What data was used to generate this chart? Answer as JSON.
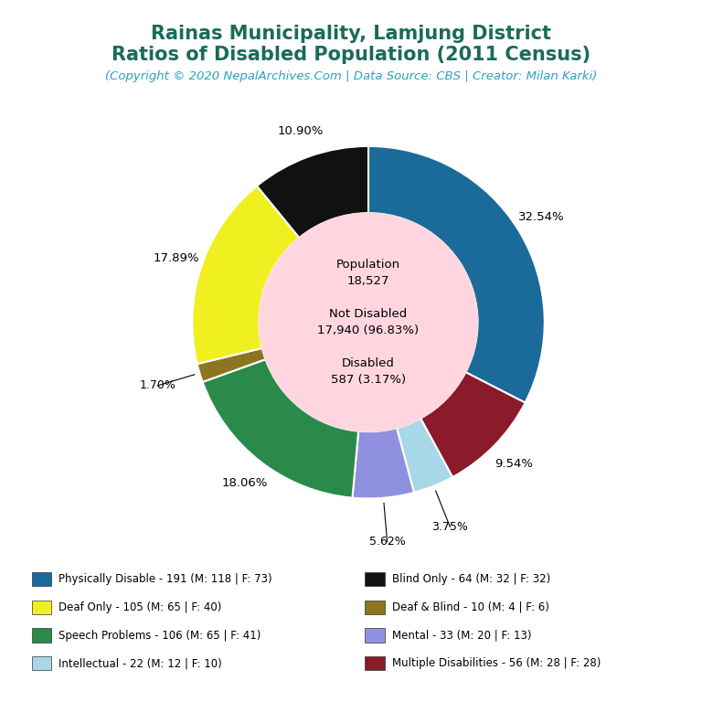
{
  "title_line1": "Rainas Municipality, Lamjung District",
  "title_line2": "Ratios of Disabled Population (2011 Census)",
  "subtitle": "(Copyright © 2020 NepalArchives.Com | Data Source: CBS | Creator: Milan Karki)",
  "title_color": "#1a6b5a",
  "subtitle_color": "#2ca0c0",
  "center_bg": "#ffd6e0",
  "slices": [
    {
      "label": "Physically Disable - 191 (M: 118 | F: 73)",
      "value": 191,
      "pct": 32.54,
      "color": "#1a6b9a"
    },
    {
      "label": "Multiple Disabilities - 56 (M: 28 | F: 28)",
      "value": 56,
      "pct": 9.54,
      "color": "#8b1a2a"
    },
    {
      "label": "Intellectual - 22 (M: 12 | F: 10)",
      "value": 22,
      "pct": 3.75,
      "color": "#a8d8e8"
    },
    {
      "label": "Mental - 33 (M: 20 | F: 13)",
      "value": 33,
      "pct": 5.62,
      "color": "#9090e0"
    },
    {
      "label": "Speech Problems - 106 (M: 65 | F: 41)",
      "value": 106,
      "pct": 18.06,
      "color": "#2a8a4a"
    },
    {
      "label": "Deaf & Blind - 10 (M: 4 | F: 6)",
      "value": 10,
      "pct": 1.7,
      "color": "#8b7520"
    },
    {
      "label": "Deaf Only - 105 (M: 65 | F: 40)",
      "value": 105,
      "pct": 17.89,
      "color": "#f0f020"
    },
    {
      "label": "Blind Only - 64 (M: 32 | F: 32)",
      "value": 64,
      "pct": 10.9,
      "color": "#111111"
    }
  ],
  "legend_entries": [
    {
      "label": "Physically Disable - 191 (M: 118 | F: 73)",
      "color": "#1a6b9a"
    },
    {
      "label": "Blind Only - 64 (M: 32 | F: 32)",
      "color": "#111111"
    },
    {
      "label": "Deaf Only - 105 (M: 65 | F: 40)",
      "color": "#f0f020"
    },
    {
      "label": "Deaf & Blind - 10 (M: 4 | F: 6)",
      "color": "#8b7520"
    },
    {
      "label": "Speech Problems - 106 (M: 65 | F: 41)",
      "color": "#2a8a4a"
    },
    {
      "label": "Mental - 33 (M: 20 | F: 13)",
      "color": "#9090e0"
    },
    {
      "label": "Intellectual - 22 (M: 12 | F: 10)",
      "color": "#a8d8e8"
    },
    {
      "label": "Multiple Disabilities - 56 (M: 28 | F: 28)",
      "color": "#8b1a2a"
    }
  ],
  "pct_labels": [
    "32.54%",
    "9.54%",
    "3.75%",
    "5.62%",
    "18.06%",
    "1.70%",
    "17.89%",
    "10.90%"
  ]
}
